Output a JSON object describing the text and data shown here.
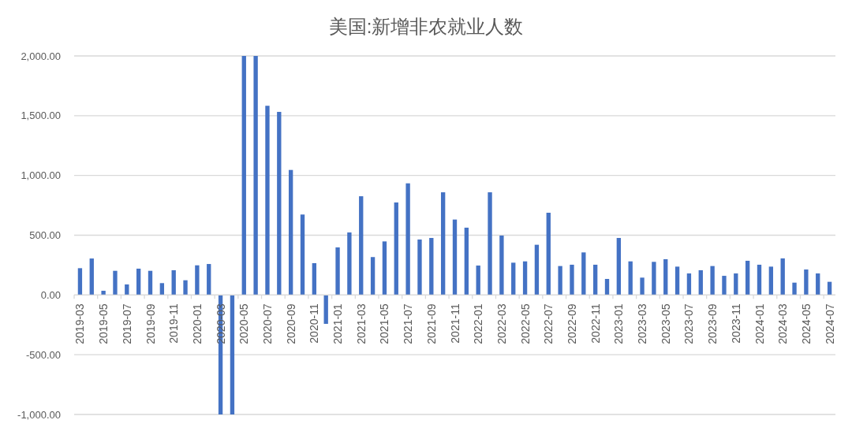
{
  "chart_data": {
    "type": "bar",
    "title": "美国:新增非农就业人数",
    "categories": [
      "2019-03",
      null,
      "2019-05",
      null,
      "2019-07",
      null,
      "2019-09",
      null,
      "2019-11",
      null,
      "2020-01",
      null,
      "2020-03",
      null,
      "2020-05",
      null,
      "2020-07",
      null,
      "2020-09",
      null,
      "2020-11",
      null,
      "2021-01",
      null,
      "2021-03",
      null,
      "2021-05",
      null,
      "2021-07",
      null,
      "2021-09",
      null,
      "2021-11",
      null,
      "2022-01",
      null,
      "2022-03",
      null,
      "2022-05",
      null,
      "2022-07",
      null,
      "2022-09",
      null,
      "2022-11",
      null,
      "2023-01",
      null,
      "2023-03",
      null,
      "2023-05",
      null,
      "2023-07",
      null,
      "2023-09",
      null,
      "2023-11",
      null,
      "2024-01",
      null,
      "2024-03",
      null,
      "2024-05",
      null,
      "2024-07"
    ],
    "values": [
      224,
      305,
      35,
      202,
      88,
      220,
      202,
      99,
      207,
      123,
      248,
      259,
      -1000,
      -1000,
      2000,
      2000,
      1583,
      1532,
      1046,
      673,
      266,
      -242,
      398,
      523,
      826,
      317,
      448,
      774,
      934,
      464,
      477,
      859,
      631,
      563,
      246,
      859,
      497,
      270,
      281,
      420,
      688,
      242,
      253,
      356,
      253,
      134,
      477,
      281,
      145,
      277,
      299,
      237,
      180,
      207,
      242,
      160,
      180,
      286,
      253,
      237,
      306,
      103,
      213,
      180,
      110
    ],
    "color": "#4472c4",
    "ylim": [
      -1000,
      2000
    ],
    "yticks": [
      {
        "value": -1000,
        "label": "-1,000.00"
      },
      {
        "value": -500,
        "label": "-500.00"
      },
      {
        "value": 0,
        "label": "0.00"
      },
      {
        "value": 500,
        "label": "500.00"
      },
      {
        "value": 1000,
        "label": "1,000.00"
      },
      {
        "value": 1500,
        "label": "1,500.00"
      },
      {
        "value": 2000,
        "label": "2,000.00"
      }
    ],
    "grid": "y"
  }
}
